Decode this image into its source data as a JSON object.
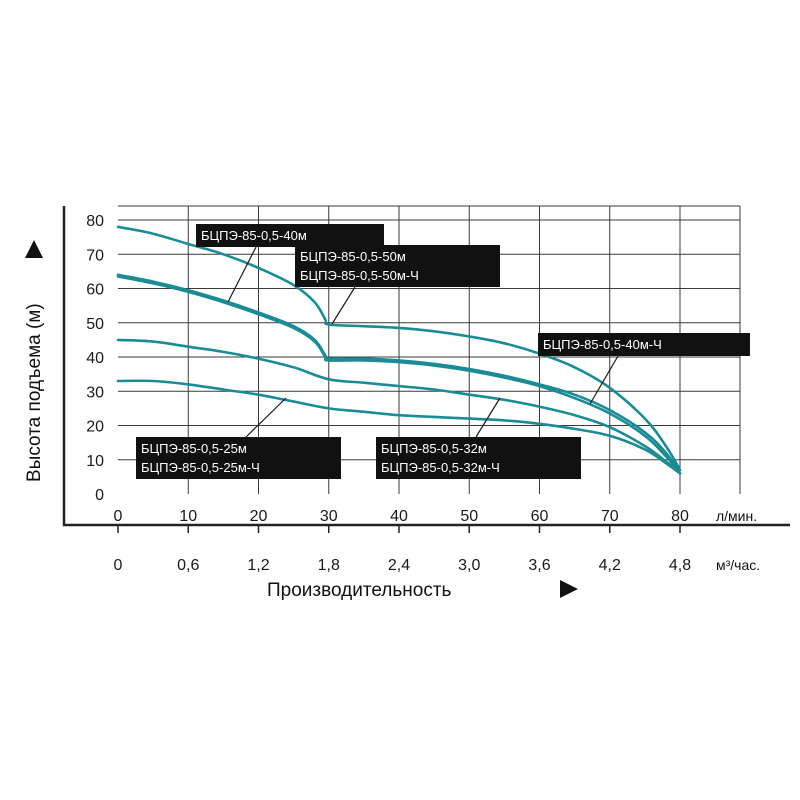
{
  "chart_data": {
    "type": "line",
    "ylabel": "Высота подъема (м)",
    "xlabel": "Производительность",
    "x_unit": "л/мин.",
    "x2_unit": "м³/час.",
    "xlim": [
      0,
      80
    ],
    "ylim": [
      0,
      80
    ],
    "grid": true,
    "x_ticks": [
      "0",
      "10",
      "20",
      "30",
      "40",
      "50",
      "60",
      "70",
      "80"
    ],
    "x2_ticks": [
      "0",
      "0,6",
      "1,2",
      "1,8",
      "2,4",
      "3,0",
      "3,6",
      "4,2",
      "4,8"
    ],
    "y_ticks": [
      "0",
      "10",
      "20",
      "30",
      "40",
      "50",
      "60",
      "70",
      "80"
    ],
    "line_color": "#1a8c96",
    "series": [
      {
        "name": "БЦПЭ-85-0,5-50м / БЦПЭ-85-0,5-50м-Ч",
        "x": [
          0,
          5,
          10,
          15,
          20,
          25,
          28,
          29.5,
          30,
          35,
          40,
          45,
          50,
          55,
          60,
          65,
          70,
          75,
          78,
          80
        ],
        "y": [
          78,
          76,
          73,
          70,
          66,
          61,
          56,
          51,
          49.5,
          49,
          48.5,
          47.5,
          46,
          44,
          41,
          37,
          31,
          22,
          14,
          7
        ]
      },
      {
        "name": "БЦПЭ-85-0,5-40м",
        "x": [
          0,
          5,
          10,
          15,
          20,
          25,
          28,
          29.5,
          30,
          35,
          40,
          45,
          50,
          55,
          60,
          65,
          70,
          75,
          78,
          80
        ],
        "y": [
          64,
          62,
          59.5,
          56.5,
          53,
          49,
          45,
          40.5,
          39.5,
          39.5,
          39,
          38,
          36.5,
          34.5,
          32,
          29,
          24.5,
          18,
          12,
          6
        ]
      },
      {
        "name": "БЦПЭ-85-0,5-40м-Ч",
        "x": [
          0,
          5,
          10,
          15,
          20,
          25,
          28,
          29.5,
          30,
          35,
          40,
          45,
          50,
          55,
          60,
          65,
          70,
          75,
          78,
          80
        ],
        "y": [
          63.5,
          61.5,
          59,
          56,
          52.5,
          48.5,
          44.5,
          40,
          39,
          39,
          38.5,
          37.5,
          36,
          34,
          31.5,
          28,
          23.5,
          17,
          11,
          6
        ]
      },
      {
        "name": "БЦПЭ-85-0,5-32м / БЦПЭ-85-0,5-32м-Ч",
        "x": [
          0,
          5,
          10,
          15,
          20,
          25,
          30,
          35,
          40,
          45,
          50,
          55,
          60,
          65,
          70,
          75,
          78,
          80
        ],
        "y": [
          45,
          44.5,
          43,
          41.5,
          39.5,
          37,
          33.5,
          32.5,
          31.5,
          30.5,
          29,
          27.5,
          25.5,
          23,
          19.5,
          14,
          9.5,
          6
        ]
      },
      {
        "name": "БЦПЭ-85-0,5-25м / БЦПЭ-85-0,5-25м-Ч",
        "x": [
          0,
          5,
          10,
          15,
          20,
          25,
          30,
          35,
          40,
          45,
          50,
          55,
          60,
          65,
          70,
          75,
          78,
          80
        ],
        "y": [
          33,
          33,
          32,
          30.5,
          29,
          27,
          25,
          24,
          23,
          22.5,
          22,
          21.5,
          20.5,
          19,
          17,
          13,
          9,
          6
        ]
      }
    ],
    "annotations": [
      {
        "lines": [
          "БЦПЭ-85-0,5-40м"
        ],
        "x": 16,
        "y": 56
      },
      {
        "lines": [
          "БЦПЭ-85-0,5-50м",
          "БЦПЭ-85-0,5-50м-Ч"
        ],
        "x": 32,
        "y": 49.5
      },
      {
        "lines": [
          "БЦПЭ-85-0,5-40м-Ч"
        ],
        "x": 68,
        "y": 26
      },
      {
        "lines": [
          "БЦПЭ-85-0,5-25м",
          "БЦПЭ-85-0,5-25м-Ч"
        ],
        "x": 24,
        "y": 28
      },
      {
        "lines": [
          "БЦПЭ-85-0,5-32м",
          "БЦПЭ-85-0,5-32м-Ч"
        ],
        "x": 55,
        "y": 27.5
      }
    ]
  }
}
